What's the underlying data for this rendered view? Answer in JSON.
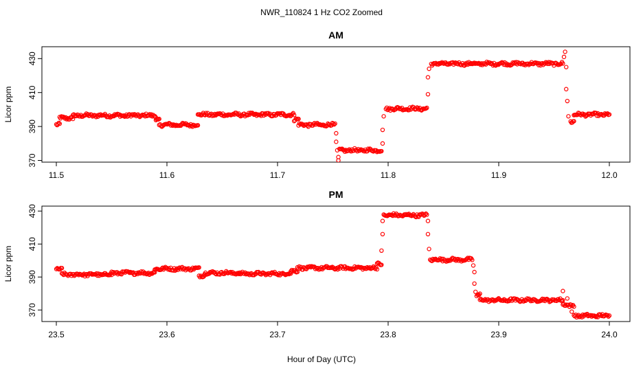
{
  "figure": {
    "title": "NWR_110824  1 Hz CO2 Zoomed",
    "xlabel": "Hour of Day (UTC)"
  },
  "chart_data": [
    {
      "type": "scatter",
      "title": "AM",
      "xlabel": "",
      "ylabel": "Licor ppm",
      "xlim": [
        11.5,
        12.0
      ],
      "ylim": [
        369,
        437
      ],
      "xticks": [
        "11.5",
        "11.6",
        "11.7",
        "11.8",
        "11.9",
        "12.0"
      ],
      "yticks": [
        "370",
        "390",
        "410",
        "430"
      ],
      "color": "#ff0000",
      "marker": "open-circle",
      "grid": false,
      "segments": [
        {
          "x_start": 11.5,
          "x_end": 11.503,
          "y": 391.0
        },
        {
          "x_start": 11.503,
          "x_end": 11.515,
          "y": 395.0
        },
        {
          "x_start": 11.515,
          "x_end": 11.59,
          "y": 396.5
        },
        {
          "x_start": 11.59,
          "x_end": 11.593,
          "y": 394.0
        },
        {
          "x_start": 11.593,
          "x_end": 11.628,
          "y": 391.0
        },
        {
          "x_start": 11.628,
          "x_end": 11.715,
          "y": 397.0
        },
        {
          "x_start": 11.715,
          "x_end": 11.719,
          "y": 394.0
        },
        {
          "x_start": 11.719,
          "x_end": 11.752,
          "y": 391.0
        },
        {
          "x_start": 11.756,
          "x_end": 11.794,
          "y": 376.0
        },
        {
          "x_start": 11.798,
          "x_end": 11.835,
          "y": 400.5
        },
        {
          "x_start": 11.839,
          "x_end": 11.958,
          "y": 427.0
        },
        {
          "x_start": 11.965,
          "x_end": 11.968,
          "y": 393.0
        },
        {
          "x_start": 11.968,
          "x_end": 12.0,
          "y": 397.0
        }
      ],
      "transitions": [
        {
          "x": 11.753,
          "y": 386.0
        },
        {
          "x": 11.753,
          "y": 381.0
        },
        {
          "x": 11.754,
          "y": 376.0
        },
        {
          "x": 11.755,
          "y": 372.0
        },
        {
          "x": 11.755,
          "y": 370.0
        },
        {
          "x": 11.795,
          "y": 380.0
        },
        {
          "x": 11.795,
          "y": 388.0
        },
        {
          "x": 11.796,
          "y": 396.0
        },
        {
          "x": 11.836,
          "y": 409.0
        },
        {
          "x": 11.836,
          "y": 419.0
        },
        {
          "x": 11.837,
          "y": 424.0
        },
        {
          "x": 11.959,
          "y": 431.0
        },
        {
          "x": 11.96,
          "y": 434.0
        },
        {
          "x": 11.961,
          "y": 425.0
        },
        {
          "x": 11.961,
          "y": 412.0
        },
        {
          "x": 11.962,
          "y": 405.0
        },
        {
          "x": 11.963,
          "y": 396.0
        }
      ]
    },
    {
      "type": "scatter",
      "title": "PM",
      "xlabel": "",
      "ylabel": "Licor ppm",
      "xlim": [
        23.5,
        24.0
      ],
      "ylim": [
        363,
        433
      ],
      "xticks": [
        "23.5",
        "23.6",
        "23.7",
        "23.8",
        "23.9",
        "24.0"
      ],
      "yticks": [
        "370",
        "390",
        "410",
        "430"
      ],
      "color": "#ff0000",
      "marker": "open-circle",
      "grid": false,
      "segments": [
        {
          "x_start": 23.5,
          "x_end": 23.505,
          "y": 394.5
        },
        {
          "x_start": 23.505,
          "x_end": 23.55,
          "y": 391.5
        },
        {
          "x_start": 23.55,
          "x_end": 23.589,
          "y": 392.5
        },
        {
          "x_start": 23.589,
          "x_end": 23.629,
          "y": 395.0
        },
        {
          "x_start": 23.629,
          "x_end": 23.634,
          "y": 391.0
        },
        {
          "x_start": 23.634,
          "x_end": 23.665,
          "y": 392.5
        },
        {
          "x_start": 23.665,
          "x_end": 23.712,
          "y": 392.0
        },
        {
          "x_start": 23.712,
          "x_end": 23.718,
          "y": 393.5
        },
        {
          "x_start": 23.718,
          "x_end": 23.79,
          "y": 395.5
        },
        {
          "x_start": 23.79,
          "x_end": 23.794,
          "y": 398.0
        },
        {
          "x_start": 23.796,
          "x_end": 23.835,
          "y": 427.5
        },
        {
          "x_start": 23.838,
          "x_end": 23.876,
          "y": 400.5
        },
        {
          "x_start": 23.88,
          "x_end": 23.883,
          "y": 379.0
        },
        {
          "x_start": 23.883,
          "x_end": 23.958,
          "y": 376.0
        },
        {
          "x_start": 23.958,
          "x_end": 23.968,
          "y": 373.0
        },
        {
          "x_start": 23.968,
          "x_end": 24.0,
          "y": 366.5
        }
      ],
      "transitions": [
        {
          "x": 23.794,
          "y": 406.0
        },
        {
          "x": 23.795,
          "y": 416.0
        },
        {
          "x": 23.795,
          "y": 424.0
        },
        {
          "x": 23.836,
          "y": 424.0
        },
        {
          "x": 23.836,
          "y": 416.0
        },
        {
          "x": 23.837,
          "y": 407.0
        },
        {
          "x": 23.877,
          "y": 397.0
        },
        {
          "x": 23.878,
          "y": 393.0
        },
        {
          "x": 23.878,
          "y": 386.0
        },
        {
          "x": 23.879,
          "y": 381.0
        },
        {
          "x": 23.958,
          "y": 381.5
        },
        {
          "x": 23.962,
          "y": 377.0
        },
        {
          "x": 23.964,
          "y": 372.0
        },
        {
          "x": 23.966,
          "y": 369.0
        }
      ]
    }
  ]
}
